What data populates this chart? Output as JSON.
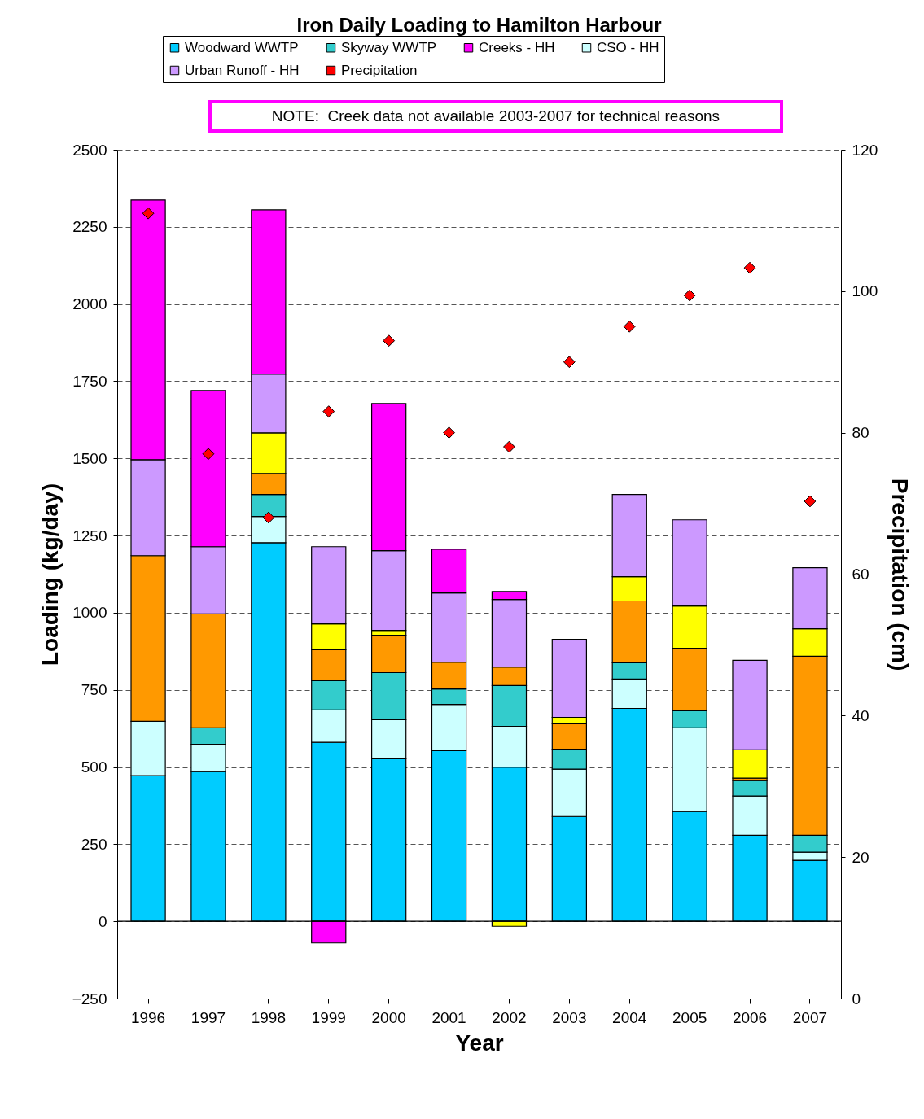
{
  "chart_data": {
    "type": "bar",
    "title": "Iron Daily Loading to Hamilton Harbour",
    "xlabel": "Year",
    "ylabel": "Loading (kg/day)",
    "y2label": "Precipitation (cm)",
    "annotations": [
      "NOTE:  Creek data not available 2003-2007 for technical reasons"
    ],
    "categories": [
      "1996",
      "1997",
      "1998",
      "1999",
      "2000",
      "2001",
      "2002",
      "2003",
      "2004",
      "2005",
      "2006",
      "2007"
    ],
    "stacked": true,
    "series": [
      {
        "name": "Woodward WWTP",
        "color": "#00ccff",
        "values": [
          472,
          485,
          1227,
          580,
          527,
          553,
          500,
          340,
          690,
          356,
          279,
          198
        ]
      },
      {
        "name": "CSO - HH",
        "color": "#ccffff",
        "values": [
          176,
          89,
          85,
          105,
          126,
          150,
          132,
          153,
          95,
          271,
          127,
          26
        ]
      },
      {
        "name": "Skyway WWTP",
        "color": "#33cccc",
        "values": [
          null,
          53,
          71,
          95,
          153,
          50,
          132,
          65,
          53,
          55,
          50,
          55
        ]
      },
      {
        "color": "#ff9900",
        "values": [
          537,
          369,
          68,
          100,
          121,
          87,
          60,
          82,
          200,
          203,
          8,
          580
        ]
      },
      {
        "color": "#ffff00",
        "values": [
          null,
          null,
          132,
          84,
          16,
          null,
          -16,
          21,
          79,
          137,
          92,
          89
        ]
      },
      {
        "name": "Urban Runoff - HH",
        "color": "#cc99ff",
        "values": [
          311,
          218,
          190,
          250,
          258,
          224,
          219,
          253,
          266,
          279,
          290,
          198
        ]
      },
      {
        "name": "Creeks - HH",
        "color": "#ff00ff",
        "values": [
          841,
          506,
          532,
          -70,
          477,
          142,
          26,
          null,
          null,
          null,
          null,
          null
        ]
      },
      {
        "name": "Precipitation",
        "type": "scatter",
        "axis": "y2",
        "marker": "diamond",
        "color": "#ff0000",
        "values": [
          111,
          77,
          68,
          83,
          93,
          80,
          78,
          90,
          95,
          99.4,
          103.3,
          70.3
        ]
      }
    ],
    "ylim": [
      -250,
      2500
    ],
    "yticks": [
      -250,
      0,
      250,
      500,
      750,
      1000,
      1250,
      1500,
      1750,
      2000,
      2250,
      2500
    ],
    "y2lim": [
      0,
      120
    ],
    "y2ticks": [
      0,
      20,
      40,
      60,
      80,
      100,
      120
    ],
    "ref_lines": [
      {
        "axis": "y",
        "value": 0,
        "color": "#000000"
      }
    ],
    "grid": "y",
    "legend": "top"
  }
}
